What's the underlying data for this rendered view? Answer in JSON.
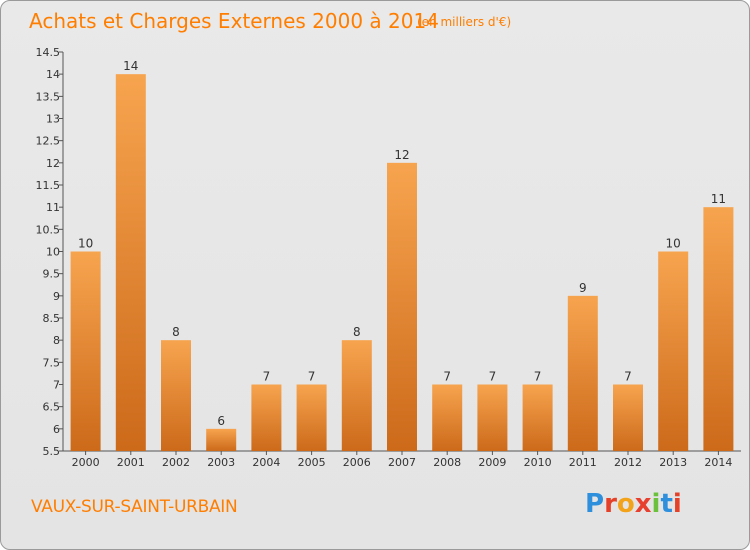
{
  "header": {
    "title": "Achats et Charges Externes 2000 à 2014",
    "subtitle": "(en milliers d'€)"
  },
  "footer": {
    "place": "VAUX-SUR-SAINT-URBAIN",
    "logo": "Proxiti"
  },
  "colors": {
    "accent": "#ff7e00",
    "bar_top": "#f7a44f",
    "bar_bottom": "#cc6a1a",
    "logo_letters": [
      "#2e8fdc",
      "#e54028",
      "#f2a31a",
      "#e8402f",
      "#6cc13c",
      "#2e8fdc",
      "#e54028"
    ]
  },
  "chart_data": {
    "type": "bar",
    "categories": [
      "2000",
      "2001",
      "2002",
      "2003",
      "2004",
      "2005",
      "2006",
      "2007",
      "2008",
      "2009",
      "2010",
      "2011",
      "2012",
      "2013",
      "2014"
    ],
    "values": [
      10,
      14,
      8,
      6,
      7,
      7,
      8,
      12,
      7,
      7,
      7,
      9,
      7,
      10,
      11
    ],
    "value_labels": [
      "10",
      "14",
      "8",
      "6",
      "7",
      "7",
      "8",
      "12",
      "7",
      "7",
      "7",
      "9",
      "7",
      "10",
      "11"
    ],
    "ylim": [
      5.5,
      14.5
    ],
    "yticks": [
      "5.5",
      "6",
      "6.5",
      "7",
      "7.5",
      "8",
      "8.5",
      "9",
      "9.5",
      "10",
      "10.5",
      "11",
      "11.5",
      "12",
      "12.5",
      "13",
      "13.5",
      "14",
      "14.5"
    ],
    "grid": false
  }
}
